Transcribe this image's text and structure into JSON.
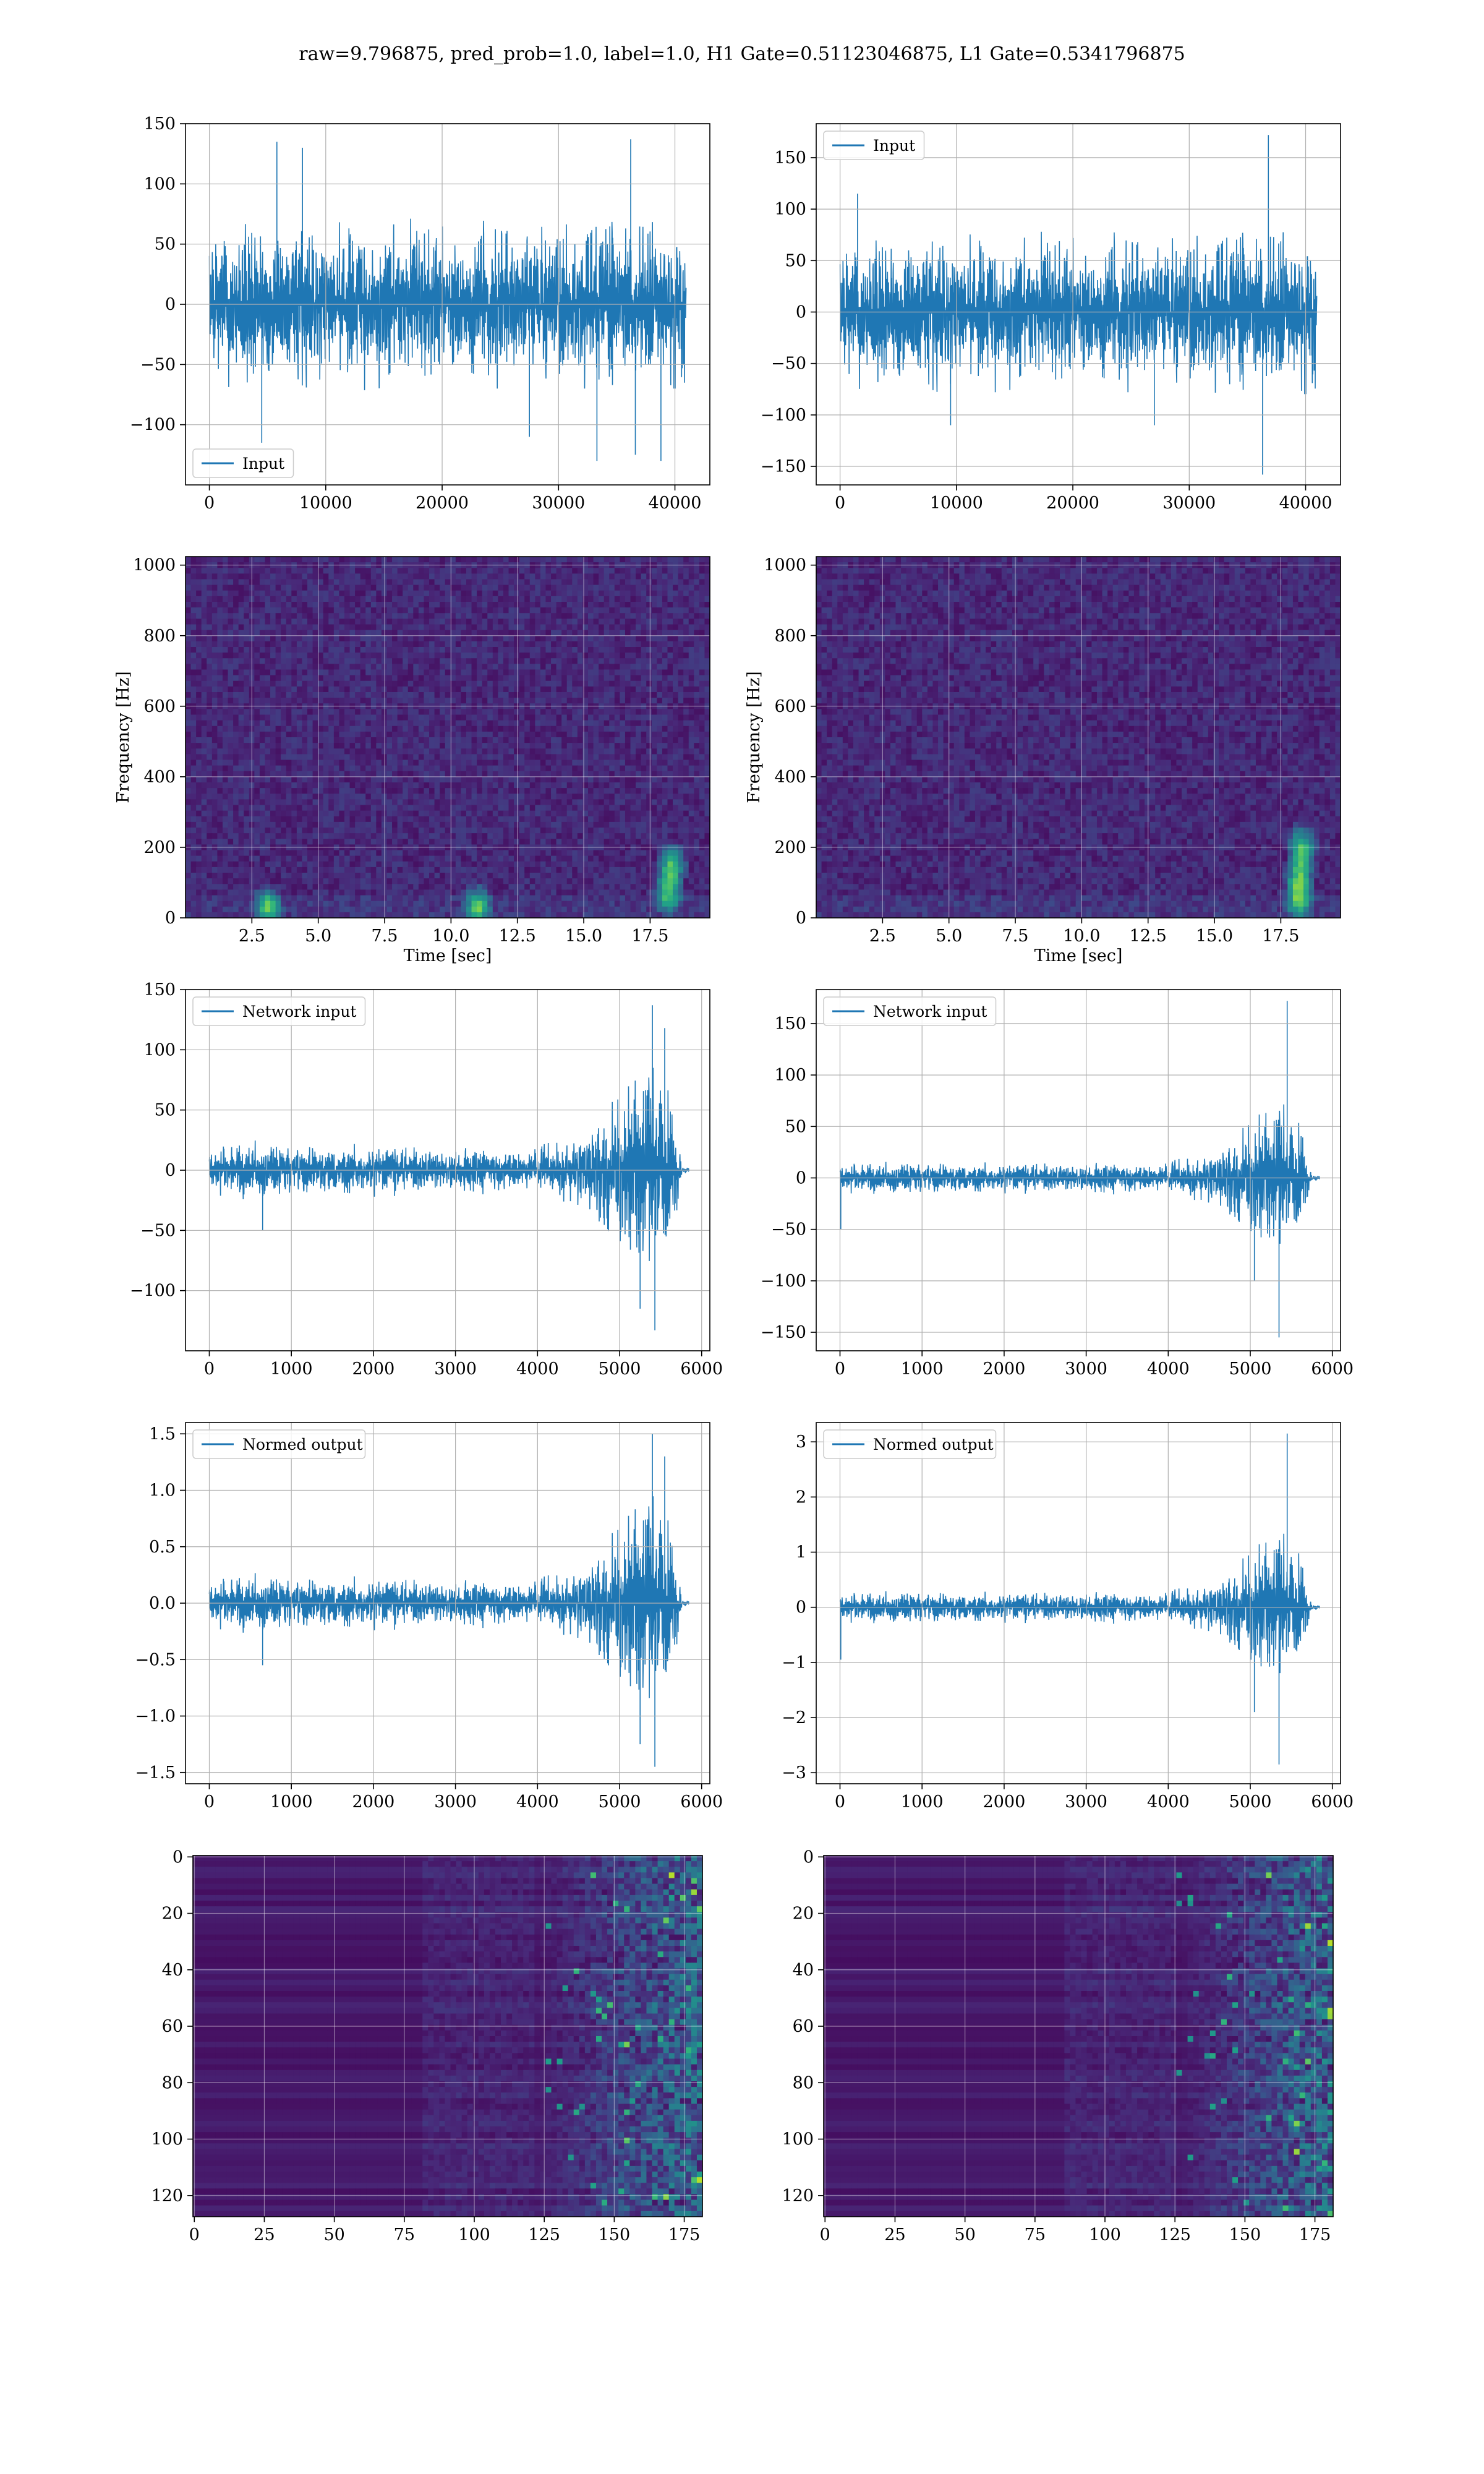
{
  "figure": {
    "suptitle": "raw=9.796875, pred_prob=1.0, label=1.0, H1 Gate=0.51123046875, L1 Gate=0.5341796875",
    "line_color": "#1f77b4",
    "heat_low": "#440154",
    "heat_high": "#5ec962"
  },
  "chart_data": [
    {
      "id": "input-h1",
      "type": "line",
      "series": [
        {
          "name": "Input",
          "color": "#1f77b4"
        }
      ],
      "legend": "lower left",
      "xlim": [
        -2050,
        43000
      ],
      "ylim": [
        -150,
        150
      ],
      "xticks": [
        0,
        10000,
        20000,
        30000,
        40000
      ],
      "xtick_labels": [
        "0",
        "10000",
        "20000",
        "30000",
        "40000"
      ],
      "yticks": [
        -100,
        -50,
        0,
        50,
        100,
        150
      ],
      "ytick_labels": [
        "−100",
        "−50",
        "0",
        "50",
        "100",
        "150"
      ],
      "x_range": [
        0,
        40960
      ],
      "envelope": [
        [
          0,
          65
        ],
        [
          3000,
          75
        ],
        [
          6000,
          70
        ],
        [
          10000,
          70
        ],
        [
          15000,
          72
        ],
        [
          20000,
          70
        ],
        [
          25000,
          70
        ],
        [
          30000,
          70
        ],
        [
          35000,
          70
        ],
        [
          40960,
          70
        ]
      ],
      "spikes": [
        [
          5800,
          135
        ],
        [
          8000,
          130
        ],
        [
          36200,
          137
        ],
        [
          4500,
          -115
        ],
        [
          33300,
          -130
        ],
        [
          36600,
          -125
        ],
        [
          38800,
          -130
        ],
        [
          27500,
          -110
        ]
      ],
      "xlabel": "",
      "ylabel": "",
      "grid": true
    },
    {
      "id": "input-l1",
      "type": "line",
      "series": [
        {
          "name": "Input",
          "color": "#1f77b4"
        }
      ],
      "legend": "upper left",
      "xlim": [
        -2050,
        43000
      ],
      "ylim": [
        -168,
        183
      ],
      "xticks": [
        0,
        10000,
        20000,
        30000,
        40000
      ],
      "xtick_labels": [
        "0",
        "10000",
        "20000",
        "30000",
        "40000"
      ],
      "yticks": [
        -150,
        -100,
        -50,
        0,
        50,
        100,
        150
      ],
      "ytick_labels": [
        "−150",
        "−100",
        "−50",
        "0",
        "50",
        "100",
        "150"
      ],
      "x_range": [
        0,
        40960
      ],
      "envelope": [
        [
          0,
          75
        ],
        [
          5000,
          80
        ],
        [
          10000,
          78
        ],
        [
          20000,
          78
        ],
        [
          30000,
          78
        ],
        [
          40960,
          80
        ]
      ],
      "spikes": [
        [
          1500,
          115
        ],
        [
          36800,
          172
        ],
        [
          36300,
          -158
        ],
        [
          9500,
          -110
        ],
        [
          27000,
          -110
        ]
      ],
      "xlabel": "",
      "ylabel": "",
      "grid": true
    },
    {
      "id": "spectrogram-h1",
      "type": "heatmap",
      "xlim": [
        0,
        19.75
      ],
      "ylim": [
        0,
        1024
      ],
      "xticks": [
        2.5,
        5.0,
        7.5,
        10.0,
        12.5,
        15.0,
        17.5
      ],
      "xtick_labels": [
        "2.5",
        "5.0",
        "7.5",
        "10.0",
        "12.5",
        "15.0",
        "17.5"
      ],
      "yticks": [
        0,
        200,
        400,
        600,
        800,
        1000
      ],
      "ytick_labels": [
        "0",
        "200",
        "400",
        "600",
        "800",
        "1000"
      ],
      "xlabel": "Time [sec]",
      "ylabel": "Frequency [Hz]",
      "hotspots": [
        [
          3.1,
          30
        ],
        [
          11.0,
          30
        ],
        [
          18.2,
          70
        ],
        [
          18.3,
          150
        ]
      ],
      "grid": true
    },
    {
      "id": "spectrogram-l1",
      "type": "heatmap",
      "xlim": [
        0,
        19.75
      ],
      "ylim": [
        0,
        1024
      ],
      "xticks": [
        2.5,
        5.0,
        7.5,
        10.0,
        12.5,
        15.0,
        17.5
      ],
      "xtick_labels": [
        "2.5",
        "5.0",
        "7.5",
        "10.0",
        "12.5",
        "15.0",
        "17.5"
      ],
      "yticks": [
        0,
        200,
        400,
        600,
        800,
        1000
      ],
      "ytick_labels": [
        "0",
        "200",
        "400",
        "600",
        "800",
        "1000"
      ],
      "xlabel": "Time [sec]",
      "ylabel": "Frequency [Hz]",
      "hotspots": [
        [
          18.2,
          50
        ],
        [
          18.2,
          120
        ],
        [
          18.3,
          200
        ]
      ],
      "grid": true
    },
    {
      "id": "network-input-h1",
      "type": "line",
      "series": [
        {
          "name": "Network input",
          "color": "#1f77b4"
        }
      ],
      "legend": "upper left",
      "xlim": [
        -290,
        6100
      ],
      "ylim": [
        -150,
        150
      ],
      "xticks": [
        0,
        1000,
        2000,
        3000,
        4000,
        5000,
        6000
      ],
      "xtick_labels": [
        "0",
        "1000",
        "2000",
        "3000",
        "4000",
        "5000",
        "6000"
      ],
      "yticks": [
        -100,
        -50,
        0,
        50,
        100,
        150
      ],
      "ytick_labels": [
        "−100",
        "−50",
        "0",
        "50",
        "100",
        "150"
      ],
      "x_range": [
        0,
        5850
      ],
      "envelope": [
        [
          0,
          20
        ],
        [
          500,
          25
        ],
        [
          1000,
          22
        ],
        [
          2000,
          22
        ],
        [
          3000,
          20
        ],
        [
          4000,
          20
        ],
        [
          4500,
          30
        ],
        [
          4800,
          60
        ],
        [
          5200,
          85
        ],
        [
          5500,
          90
        ],
        [
          5700,
          55
        ],
        [
          5760,
          3
        ],
        [
          5850,
          3
        ]
      ],
      "spikes": [
        [
          5400,
          137
        ],
        [
          5550,
          118
        ],
        [
          5430,
          -133
        ],
        [
          5250,
          -115
        ],
        [
          650,
          -50
        ]
      ],
      "xlabel": "",
      "ylabel": "",
      "grid": true
    },
    {
      "id": "network-input-l1",
      "type": "line",
      "series": [
        {
          "name": "Network input",
          "color": "#1f77b4"
        }
      ],
      "legend": "upper left",
      "xlim": [
        -290,
        6100
      ],
      "ylim": [
        -168,
        183
      ],
      "xticks": [
        0,
        1000,
        2000,
        3000,
        4000,
        5000,
        6000
      ],
      "xtick_labels": [
        "0",
        "1000",
        "2000",
        "3000",
        "4000",
        "5000",
        "6000"
      ],
      "yticks": [
        -150,
        -100,
        -50,
        0,
        50,
        100,
        150
      ],
      "ytick_labels": [
        "−150",
        "−100",
        "−50",
        "0",
        "50",
        "100",
        "150"
      ],
      "x_range": [
        0,
        5850
      ],
      "envelope": [
        [
          0,
          15
        ],
        [
          1000,
          16
        ],
        [
          2000,
          15
        ],
        [
          3000,
          16
        ],
        [
          4000,
          16
        ],
        [
          4500,
          25
        ],
        [
          4800,
          50
        ],
        [
          5100,
          70
        ],
        [
          5400,
          75
        ],
        [
          5650,
          55
        ],
        [
          5750,
          3
        ],
        [
          5850,
          3
        ]
      ],
      "spikes": [
        [
          5450,
          172
        ],
        [
          5350,
          -155
        ],
        [
          10,
          -50
        ],
        [
          5050,
          -100
        ]
      ],
      "xlabel": "",
      "ylabel": "",
      "grid": true
    },
    {
      "id": "normed-output-h1",
      "type": "line",
      "series": [
        {
          "name": "Normed output",
          "color": "#1f77b4"
        }
      ],
      "legend": "upper left",
      "xlim": [
        -290,
        6100
      ],
      "ylim": [
        -1.6,
        1.6
      ],
      "xticks": [
        0,
        1000,
        2000,
        3000,
        4000,
        5000,
        6000
      ],
      "xtick_labels": [
        "0",
        "1000",
        "2000",
        "3000",
        "4000",
        "5000",
        "6000"
      ],
      "yticks": [
        -1.5,
        -1.0,
        -0.5,
        0.0,
        0.5,
        1.0,
        1.5
      ],
      "ytick_labels": [
        "−1.5",
        "−1.0",
        "−0.5",
        "0.0",
        "0.5",
        "1.0",
        "1.5"
      ],
      "x_range": [
        0,
        5850
      ],
      "envelope": [
        [
          0,
          0.22
        ],
        [
          500,
          0.27
        ],
        [
          1000,
          0.24
        ],
        [
          2000,
          0.24
        ],
        [
          3000,
          0.22
        ],
        [
          4000,
          0.22
        ],
        [
          4500,
          0.32
        ],
        [
          4800,
          0.65
        ],
        [
          5200,
          0.95
        ],
        [
          5500,
          1.0
        ],
        [
          5700,
          0.6
        ],
        [
          5760,
          0.03
        ],
        [
          5850,
          0.03
        ]
      ],
      "spikes": [
        [
          5400,
          1.5
        ],
        [
          5550,
          1.3
        ],
        [
          5430,
          -1.45
        ],
        [
          5250,
          -1.25
        ],
        [
          650,
          -0.55
        ]
      ],
      "xlabel": "",
      "ylabel": "",
      "grid": true
    },
    {
      "id": "normed-output-l1",
      "type": "line",
      "series": [
        {
          "name": "Normed output",
          "color": "#1f77b4"
        }
      ],
      "legend": "upper left",
      "xlim": [
        -290,
        6100
      ],
      "ylim": [
        -3.2,
        3.35
      ],
      "xticks": [
        0,
        1000,
        2000,
        3000,
        4000,
        5000,
        6000
      ],
      "xtick_labels": [
        "0",
        "1000",
        "2000",
        "3000",
        "4000",
        "5000",
        "6000"
      ],
      "yticks": [
        -3,
        -2,
        -1,
        0,
        1,
        2,
        3
      ],
      "ytick_labels": [
        "−3",
        "−2",
        "−1",
        "0",
        "1",
        "2",
        "3"
      ],
      "x_range": [
        0,
        5850
      ],
      "envelope": [
        [
          0,
          0.28
        ],
        [
          1000,
          0.3
        ],
        [
          2000,
          0.28
        ],
        [
          3000,
          0.3
        ],
        [
          4000,
          0.3
        ],
        [
          4500,
          0.45
        ],
        [
          4800,
          0.9
        ],
        [
          5100,
          1.3
        ],
        [
          5400,
          1.4
        ],
        [
          5650,
          1.0
        ],
        [
          5750,
          0.05
        ],
        [
          5850,
          0.05
        ]
      ],
      "spikes": [
        [
          5450,
          3.15
        ],
        [
          5350,
          -2.85
        ],
        [
          10,
          -0.95
        ],
        [
          5050,
          -1.9
        ]
      ],
      "xlabel": "",
      "ylabel": "",
      "grid": true
    },
    {
      "id": "feature-map-h1",
      "type": "heatmap",
      "xlim": [
        -0.5,
        181.5
      ],
      "ylim": [
        127.5,
        -0.5
      ],
      "xticks": [
        0,
        25,
        50,
        75,
        100,
        125,
        150,
        175
      ],
      "xtick_labels": [
        "0",
        "25",
        "50",
        "75",
        "100",
        "125",
        "150",
        "175"
      ],
      "yticks": [
        0,
        20,
        40,
        60,
        80,
        100,
        120
      ],
      "ytick_labels": [
        "0",
        "20",
        "40",
        "60",
        "80",
        "100",
        "120"
      ],
      "active_from": 120,
      "xlabel": "",
      "ylabel": "",
      "grid": true
    },
    {
      "id": "feature-map-l1",
      "type": "heatmap",
      "xlim": [
        -0.5,
        181.5
      ],
      "ylim": [
        127.5,
        -0.5
      ],
      "xticks": [
        0,
        25,
        50,
        75,
        100,
        125,
        150,
        175
      ],
      "xtick_labels": [
        "0",
        "25",
        "50",
        "75",
        "100",
        "125",
        "150",
        "175"
      ],
      "yticks": [
        0,
        20,
        40,
        60,
        80,
        100,
        120
      ],
      "ytick_labels": [
        "0",
        "20",
        "40",
        "60",
        "80",
        "100",
        "120"
      ],
      "active_from": 125,
      "xlabel": "",
      "ylabel": "",
      "grid": true
    }
  ]
}
